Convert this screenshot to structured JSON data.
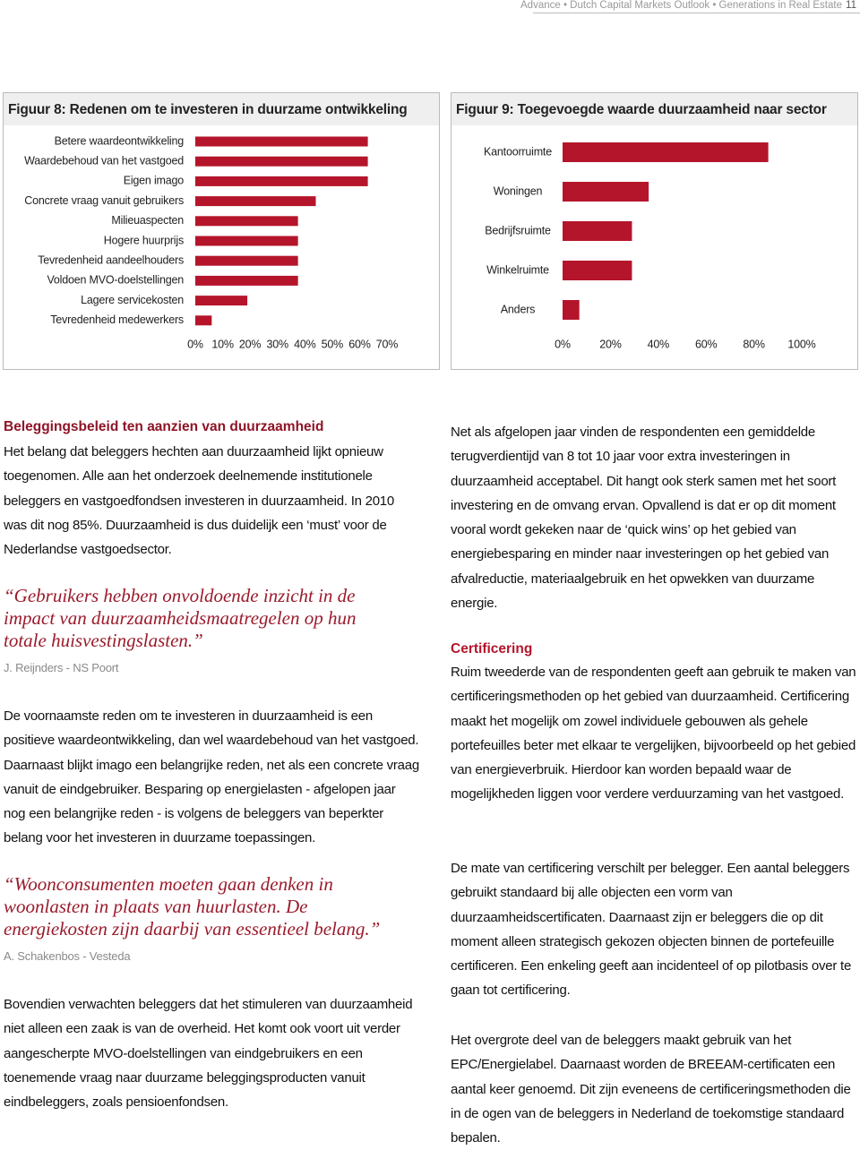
{
  "header": {
    "running_title": "Advance • Dutch Capital Markets Outlook • Generations in Real Estate",
    "page_number": "11"
  },
  "chart_data": [
    {
      "type": "bar",
      "orientation": "horizontal",
      "title": "Figuur 8: Redenen om te investeren in duurzame ontwikkeling",
      "categories": [
        "Betere waardeontwikkeling",
        "Waardebehoud van het vastgoed",
        "Eigen imago",
        "Concrete vraag vanuit gebruikers",
        "Milieuaspecten",
        "Hogere huurprijs",
        "Tevredenheid aandeelhouders",
        "Voldoen MVO-doelstellingen",
        "Lagere servicekosten",
        "Tevredenheid medewerkers"
      ],
      "values": [
        63,
        63,
        63,
        44,
        37.5,
        37.5,
        37.5,
        37.5,
        19,
        6
      ],
      "color": "#b5152b",
      "xlim": [
        0,
        70
      ],
      "xticks": [
        {
          "value": 0,
          "label": "0%"
        },
        {
          "value": 10,
          "label": "10%"
        },
        {
          "value": 20,
          "label": "20%"
        },
        {
          "value": 30,
          "label": "30%"
        },
        {
          "value": 40,
          "label": "40%"
        },
        {
          "value": 50,
          "label": "50%"
        },
        {
          "value": 60,
          "label": "60%"
        },
        {
          "value": 70,
          "label": "70%"
        }
      ]
    },
    {
      "type": "bar",
      "orientation": "horizontal",
      "title": "Figuur 9: Toegevoegde waarde duurzaamheid naar sector",
      "categories": [
        "Kantoorruimte",
        "Woningen",
        "Bedrijfsruimte",
        "Winkelruimte",
        "Anders"
      ],
      "values": [
        86,
        36,
        29,
        29,
        7
      ],
      "color": "#b5152b",
      "xlim": [
        0,
        100
      ],
      "xticks": [
        {
          "value": 0,
          "label": "0%"
        },
        {
          "value": 20,
          "label": "20%"
        },
        {
          "value": 40,
          "label": "40%"
        },
        {
          "value": 60,
          "label": "60%"
        },
        {
          "value": 80,
          "label": "80%"
        },
        {
          "value": 100,
          "label": "100%"
        }
      ]
    }
  ],
  "left_column": {
    "heading": "Beleggingsbeleid ten aanzien van duurzaamheid",
    "paragraphs": [
      "Het belang dat beleggers hechten aan duurzaamheid lijkt opnieuw toegenomen. Alle aan het onderzoek deelnemende institutionele beleggers en vastgoedfondsen investeren in duurzaamheid. In 2010 was dit nog 85%. Duurzaamheid is dus duidelijk een ‘must’ voor de Nederlandse vastgoedsector.",
      "De voornaamste reden om te investeren in duurzaamheid is een positieve waardeontwikkeling, dan wel waardebehoud van het vastgoed. Daarnaast blijkt imago een belangrijke reden, net als een concrete vraag vanuit de eindgebruiker. Besparing op energielasten - afgelopen jaar nog een belangrijke reden - is volgens de beleggers van beperkter belang voor het investeren in duurzame toepassingen.",
      "Bovendien verwachten beleggers dat het stimuleren van duurzaamheid niet alleen een zaak is van de overheid. Het komt ook voort uit verder aangescherpte MVO-doelstellingen van eindgebruikers en een toenemende vraag naar duurzame beleggingsproducten vanuit eindbeleggers, zoals pensioenfondsen."
    ],
    "quotes": [
      {
        "text": "“Gebruikers hebben onvoldoende inzicht in de impact van duurzaamheidsmaatregelen op hun totale huisvestingslasten.”",
        "source": "J. Reijnders - NS Poort"
      },
      {
        "text": "“Woonconsumenten moeten gaan denken in woonlasten in plaats van huurlasten. De energiekosten zijn daarbij van essentieel belang.”",
        "source": "A. Schakenbos - Vesteda"
      }
    ]
  },
  "right_column": {
    "paragraphs": [
      "Net als afgelopen jaar vinden de respondenten een gemiddelde terugverdientijd van 8 tot 10 jaar voor extra investeringen in duurzaamheid acceptabel. Dit hangt ook sterk samen met het soort investering en de omvang ervan. Opvallend is dat er op dit moment vooral wordt gekeken naar de ‘quick wins’ op het gebied van energiebesparing en minder naar investeringen op het gebied van afvalreductie, materiaalgebruik en het opwekken van duurzame energie.",
      "Ruim tweederde van de respondenten geeft aan gebruik te maken van certificeringsmethoden op het gebied van duurzaamheid. Certificering maakt het mogelijk om zowel individuele gebouwen als gehele portefeuilles beter met elkaar te vergelijken, bijvoorbeeld op het gebied van energieverbruik. Hierdoor kan worden bepaald waar de mogelijkheden liggen voor verdere verduurzaming van het vastgoed.",
      "De mate van certificering verschilt per belegger. Een aantal beleggers gebruikt standaard bij alle objecten een vorm van duurzaamheidscertificaten. Daarnaast zijn er beleggers die op dit moment alleen strategisch gekozen objecten binnen de portefeuille certificeren. Een enkeling geeft aan incidenteel of op pilotbasis over te gaan tot certificering.",
      "Het overgrote deel van de beleggers maakt gebruik van het EPC/Energielabel. Daarnaast worden de BREEAM-certificaten een aantal keer genoemd. Dit zijn eveneens de certificeringsmethoden die in de ogen van de beleggers in Nederland de toekomstige standaard bepalen."
    ],
    "heading": "Certificering"
  }
}
